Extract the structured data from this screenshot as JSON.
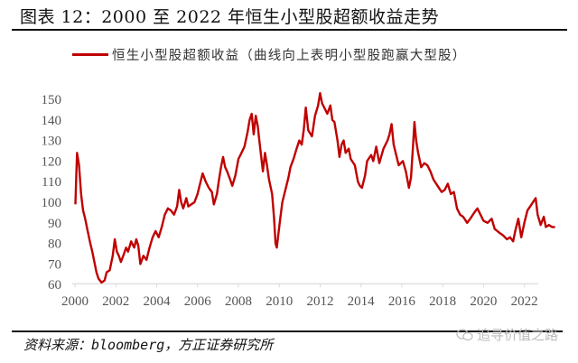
{
  "header": {
    "title": "图表 12：2000 至 2022 年恒生小型股超额收益走势"
  },
  "legend": {
    "items": [
      {
        "label": "恒生小型股超额收益（曲线向上表明小型股跑赢大型股）",
        "color": "#c00000"
      }
    ]
  },
  "footer": {
    "source": "资料来源：bloomberg，方正证券研究所",
    "watermark": "追寻价值之路",
    "watermark_icon": "wechat-icon"
  },
  "colors": {
    "series": "#c00000",
    "axis": "#d9d9d9",
    "tick_label": "#555555",
    "rule": "#111111"
  },
  "chart_data": {
    "type": "line",
    "title": "2000 至 2022 年恒生小型股超额收益走势",
    "xlabel": "",
    "ylabel": "",
    "xlim": [
      2000,
      2022.7
    ],
    "ylim": [
      60,
      155
    ],
    "x_ticks": [
      "2000",
      "2002",
      "2004",
      "2006",
      "2008",
      "2010",
      "2012",
      "2014",
      "2016",
      "2018",
      "2020",
      "2022"
    ],
    "y_ticks": [
      60,
      70,
      80,
      90,
      100,
      110,
      120,
      130,
      140,
      150
    ],
    "grid": false,
    "legend_position": "top",
    "series": [
      {
        "name": "恒生小型股超额收益（曲线向上表明小型股跑赢大型股）",
        "color": "#c00000",
        "points": [
          [
            2000.02,
            99
          ],
          [
            2000.06,
            112
          ],
          [
            2000.1,
            124
          ],
          [
            2000.2,
            118
          ],
          [
            2000.3,
            104
          ],
          [
            2000.4,
            96
          ],
          [
            2000.5,
            92
          ],
          [
            2000.6,
            87
          ],
          [
            2000.75,
            80
          ],
          [
            2000.85,
            76
          ],
          [
            2000.95,
            71
          ],
          [
            2001.05,
            66
          ],
          [
            2001.15,
            63
          ],
          [
            2001.3,
            61
          ],
          [
            2001.45,
            62
          ],
          [
            2001.55,
            66
          ],
          [
            2001.7,
            67
          ],
          [
            2001.85,
            74
          ],
          [
            2001.95,
            82
          ],
          [
            2002.05,
            76
          ],
          [
            2002.15,
            74
          ],
          [
            2002.25,
            71
          ],
          [
            2002.4,
            75
          ],
          [
            2002.5,
            78
          ],
          [
            2002.6,
            76
          ],
          [
            2002.75,
            81
          ],
          [
            2002.9,
            78
          ],
          [
            2003.0,
            82
          ],
          [
            2003.1,
            79
          ],
          [
            2003.2,
            70
          ],
          [
            2003.35,
            74
          ],
          [
            2003.5,
            72
          ],
          [
            2003.65,
            78
          ],
          [
            2003.8,
            83
          ],
          [
            2003.95,
            86
          ],
          [
            2004.1,
            83
          ],
          [
            2004.25,
            88
          ],
          [
            2004.4,
            94
          ],
          [
            2004.55,
            97
          ],
          [
            2004.7,
            96
          ],
          [
            2004.85,
            94
          ],
          [
            2005.0,
            98
          ],
          [
            2005.1,
            106
          ],
          [
            2005.2,
            100
          ],
          [
            2005.3,
            97
          ],
          [
            2005.45,
            102
          ],
          [
            2005.55,
            98
          ],
          [
            2005.7,
            99
          ],
          [
            2005.85,
            100
          ],
          [
            2006.0,
            104
          ],
          [
            2006.15,
            110
          ],
          [
            2006.25,
            114
          ],
          [
            2006.4,
            110
          ],
          [
            2006.55,
            107
          ],
          [
            2006.7,
            105
          ],
          [
            2006.8,
            99
          ],
          [
            2006.95,
            104
          ],
          [
            2007.05,
            111
          ],
          [
            2007.15,
            117
          ],
          [
            2007.25,
            122
          ],
          [
            2007.35,
            117
          ],
          [
            2007.45,
            115
          ],
          [
            2007.6,
            111
          ],
          [
            2007.7,
            108
          ],
          [
            2007.85,
            113
          ],
          [
            2008.0,
            121
          ],
          [
            2008.15,
            124
          ],
          [
            2008.3,
            127
          ],
          [
            2008.45,
            134
          ],
          [
            2008.55,
            140
          ],
          [
            2008.65,
            143
          ],
          [
            2008.75,
            133
          ],
          [
            2008.85,
            142
          ],
          [
            2008.95,
            137
          ],
          [
            2009.05,
            128
          ],
          [
            2009.2,
            115
          ],
          [
            2009.3,
            124
          ],
          [
            2009.4,
            118
          ],
          [
            2009.5,
            111
          ],
          [
            2009.65,
            104
          ],
          [
            2009.75,
            92
          ],
          [
            2009.82,
            80
          ],
          [
            2009.88,
            78
          ],
          [
            2009.95,
            84
          ],
          [
            2010.05,
            92
          ],
          [
            2010.15,
            100
          ],
          [
            2010.3,
            106
          ],
          [
            2010.45,
            112
          ],
          [
            2010.55,
            117
          ],
          [
            2010.7,
            121
          ],
          [
            2010.85,
            126
          ],
          [
            2010.98,
            130
          ],
          [
            2011.1,
            128
          ],
          [
            2011.2,
            135
          ],
          [
            2011.3,
            146
          ],
          [
            2011.42,
            135
          ],
          [
            2011.6,
            132
          ],
          [
            2011.75,
            142
          ],
          [
            2011.9,
            147
          ],
          [
            2012.0,
            153
          ],
          [
            2012.1,
            148
          ],
          [
            2012.2,
            146
          ],
          [
            2012.35,
            143
          ],
          [
            2012.5,
            147
          ],
          [
            2012.6,
            140
          ],
          [
            2012.7,
            139
          ],
          [
            2012.85,
            130
          ],
          [
            2012.95,
            122
          ],
          [
            2013.05,
            128
          ],
          [
            2013.15,
            130
          ],
          [
            2013.25,
            124
          ],
          [
            2013.4,
            126
          ],
          [
            2013.5,
            121
          ],
          [
            2013.7,
            118
          ],
          [
            2013.85,
            110
          ],
          [
            2013.95,
            108
          ],
          [
            2014.05,
            107
          ],
          [
            2014.2,
            113
          ],
          [
            2014.3,
            120
          ],
          [
            2014.5,
            123
          ],
          [
            2014.6,
            120
          ],
          [
            2014.75,
            127
          ],
          [
            2014.9,
            119
          ],
          [
            2015.1,
            126
          ],
          [
            2015.3,
            130
          ],
          [
            2015.4,
            133
          ],
          [
            2015.5,
            138
          ],
          [
            2015.6,
            128
          ],
          [
            2015.7,
            124
          ],
          [
            2015.85,
            118
          ],
          [
            2016.05,
            120
          ],
          [
            2016.2,
            115
          ],
          [
            2016.35,
            107
          ],
          [
            2016.45,
            112
          ],
          [
            2016.55,
            128
          ],
          [
            2016.62,
            139
          ],
          [
            2016.7,
            130
          ],
          [
            2016.8,
            124
          ],
          [
            2016.95,
            117
          ],
          [
            2017.1,
            119
          ],
          [
            2017.25,
            118
          ],
          [
            2017.4,
            115
          ],
          [
            2017.55,
            111
          ],
          [
            2017.75,
            108
          ],
          [
            2017.95,
            105
          ],
          [
            2018.1,
            106
          ],
          [
            2018.25,
            109
          ],
          [
            2018.4,
            104
          ],
          [
            2018.55,
            105
          ],
          [
            2018.7,
            97
          ],
          [
            2018.85,
            94
          ],
          [
            2019.0,
            93
          ],
          [
            2019.2,
            90
          ],
          [
            2019.35,
            92
          ],
          [
            2019.55,
            95
          ],
          [
            2019.7,
            97
          ],
          [
            2019.85,
            94
          ],
          [
            2020.0,
            91
          ],
          [
            2020.2,
            90
          ],
          [
            2020.4,
            92
          ],
          [
            2020.55,
            87
          ],
          [
            2020.8,
            85
          ],
          [
            2020.95,
            84
          ],
          [
            2021.15,
            82
          ],
          [
            2021.3,
            83
          ],
          [
            2021.45,
            81
          ],
          [
            2021.55,
            86
          ],
          [
            2021.7,
            92
          ],
          [
            2021.85,
            83
          ],
          [
            2022.0,
            90
          ],
          [
            2022.15,
            96
          ],
          [
            2022.35,
            99
          ],
          [
            2022.55,
            102
          ],
          [
            2022.65,
            94
          ],
          [
            2022.8,
            89
          ],
          [
            2022.95,
            93
          ],
          [
            2023.05,
            88
          ],
          [
            2023.2,
            89
          ],
          [
            2023.35,
            88
          ],
          [
            2023.5,
            88
          ]
        ]
      }
    ]
  }
}
